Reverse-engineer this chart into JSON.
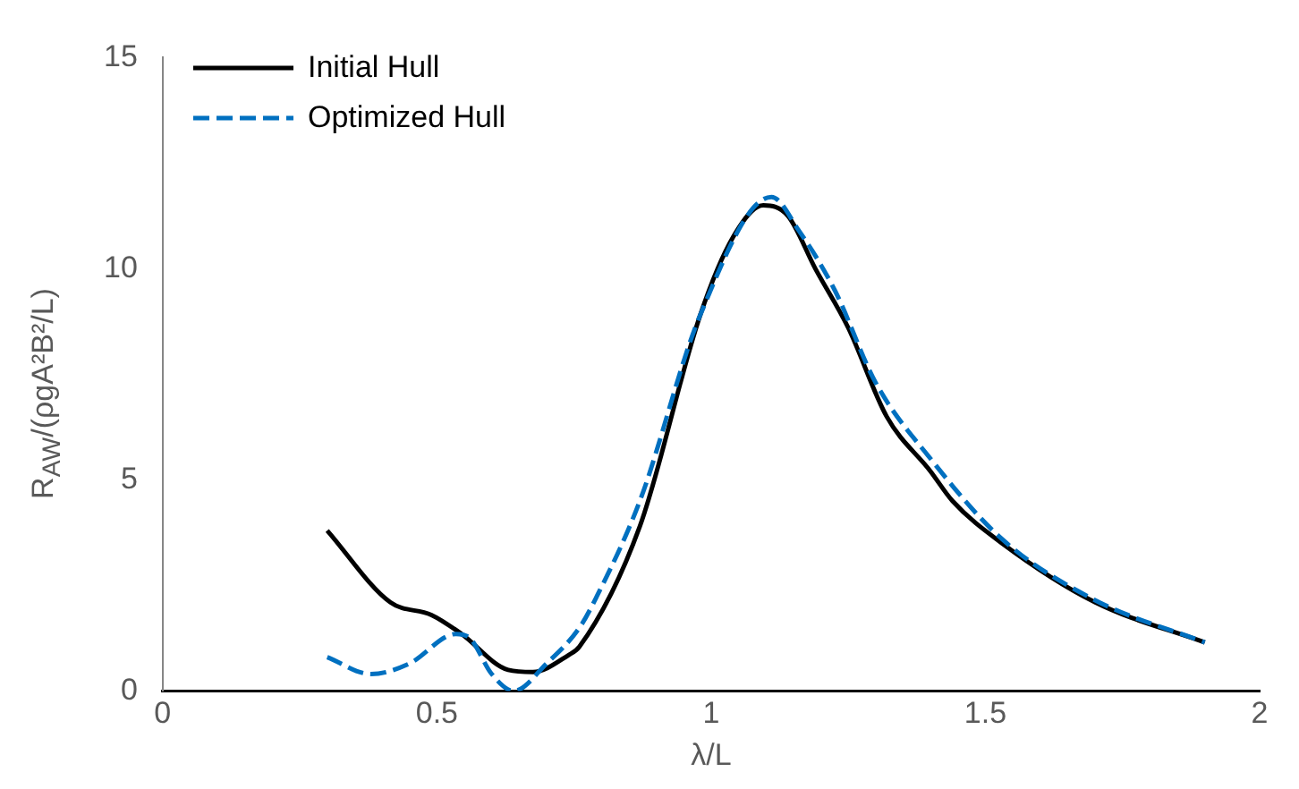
{
  "chart_data": {
    "type": "line",
    "xlabel": "λ/L",
    "ylabel": "R$_{AW}$/(ρgA²B²/L)",
    "xlim": [
      0,
      2
    ],
    "xticks": [
      0,
      0.5,
      1,
      1.5,
      2
    ],
    "ylim": [
      0,
      15
    ],
    "yticks": [
      0,
      5,
      10,
      15
    ],
    "grid": false,
    "legend": "top left",
    "marker": "none",
    "series": [
      {
        "name": "Initial Hull",
        "color": "#000000",
        "line_style": "solid",
        "x": [
          0.3,
          0.415,
          0.49,
          0.545,
          0.63,
          0.675,
          0.74,
          0.76,
          0.87,
          0.98,
          1.04,
          1.095,
          1.14,
          1.19,
          1.25,
          1.32,
          1.4,
          1.44,
          1.53,
          1.7,
          1.9
        ],
        "values": [
          3.8,
          2.1,
          1.8,
          1.35,
          0.5,
          0.45,
          0.85,
          1.05,
          3.9,
          8.9,
          10.75,
          11.5,
          11.25,
          10.0,
          8.6,
          6.5,
          5.2,
          4.5,
          3.5,
          2.1,
          1.15
        ]
      },
      {
        "name": "Optimized Hull",
        "color": "#0070c0",
        "line_style": "dashed",
        "x": [
          0.3,
          0.38,
          0.45,
          0.535,
          0.56,
          0.6,
          0.64,
          0.7,
          0.76,
          0.79,
          0.87,
          0.98,
          1.11,
          1.16,
          1.225,
          1.3,
          1.4,
          1.53,
          1.7,
          1.9
        ],
        "values": [
          0.8,
          0.4,
          0.65,
          1.35,
          1.25,
          0.4,
          0.0,
          0.65,
          1.5,
          2.2,
          4.5,
          8.9,
          11.7,
          10.9,
          9.5,
          7.3,
          5.5,
          3.6,
          2.15,
          1.15
        ]
      }
    ]
  }
}
